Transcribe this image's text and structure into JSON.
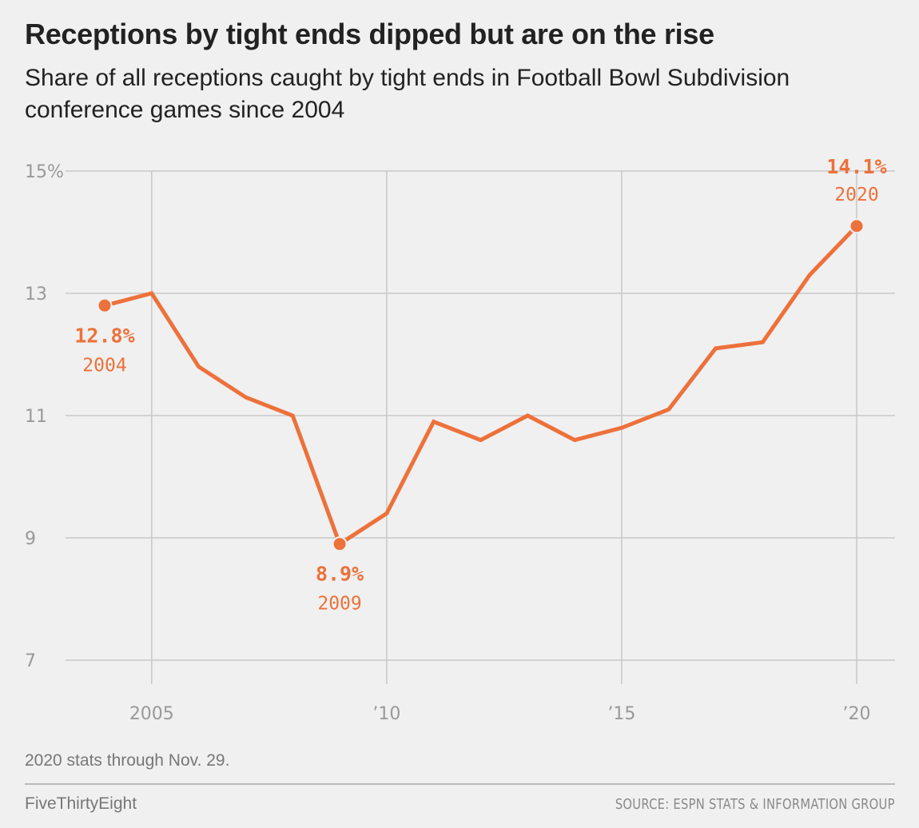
{
  "header": {
    "title": "Receptions by tight ends dipped but are on the rise",
    "subtitle": "Share of all receptions caught by tight ends in Football Bowl Subdivision conference games since 2004"
  },
  "footer": {
    "note": "2020 stats through Nov. 29.",
    "brand": "FiveThirtyEight",
    "source": "SOURCE: ESPN STATS & INFORMATION GROUP"
  },
  "colors": {
    "line": "#ed713a",
    "grid": "#c8c8c8",
    "background": "#f0f0f0"
  },
  "chart_data": {
    "type": "line",
    "title": "Receptions by tight ends dipped but are on the rise",
    "subtitle": "Share of all receptions caught by tight ends in Football Bowl Subdivision conference games since 2004",
    "xlabel": "",
    "ylabel": "",
    "xlim": [
      2004,
      2020
    ],
    "ylim": [
      7,
      15
    ],
    "grid": true,
    "x_ticks": [
      {
        "value": 2005,
        "label": "2005"
      },
      {
        "value": 2010,
        "label": "’10"
      },
      {
        "value": 2015,
        "label": "’15"
      },
      {
        "value": 2020,
        "label": "’20"
      }
    ],
    "y_ticks": [
      {
        "value": 7,
        "label": "7"
      },
      {
        "value": 9,
        "label": "9"
      },
      {
        "value": 11,
        "label": "11"
      },
      {
        "value": 13,
        "label": "13"
      },
      {
        "value": 15,
        "label": "15%"
      }
    ],
    "x": [
      2004,
      2005,
      2006,
      2007,
      2008,
      2009,
      2010,
      2011,
      2012,
      2013,
      2014,
      2015,
      2016,
      2017,
      2018,
      2019,
      2020
    ],
    "series": [
      {
        "values": [
          12.8,
          13.0,
          11.8,
          11.3,
          11.0,
          8.9,
          9.4,
          10.9,
          10.6,
          11.0,
          10.6,
          10.8,
          11.1,
          12.1,
          12.2,
          13.3,
          14.1
        ]
      }
    ],
    "annotations": [
      {
        "x": 2004,
        "y": 12.8,
        "value_label": "12.8%",
        "year_label": "2004",
        "placement": "below"
      },
      {
        "x": 2009,
        "y": 8.9,
        "value_label": "8.9%",
        "year_label": "2009",
        "placement": "below"
      },
      {
        "x": 2020,
        "y": 14.1,
        "value_label": "14.1%",
        "year_label": "2020",
        "placement": "above"
      }
    ]
  }
}
